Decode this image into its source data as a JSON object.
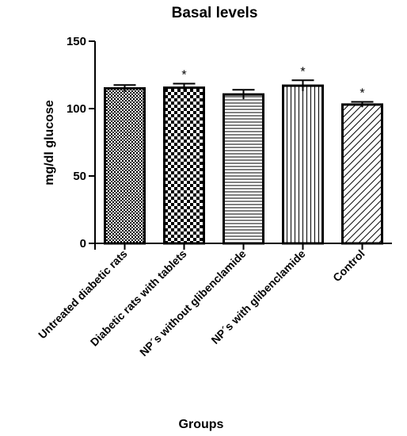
{
  "chart_data": {
    "type": "bar",
    "title": "Basal levels",
    "xlabel": "Groups",
    "ylabel": "mg/dl glucose",
    "ylim": [
      0,
      150
    ],
    "yticks": [
      0,
      50,
      100,
      150
    ],
    "grid": false,
    "categories": [
      "Untreated diabetic rats",
      "Diabetic rats with tablets",
      "NP´s without glibenclamide",
      "NP´s with glibenclamide",
      "Control"
    ],
    "values": [
      115,
      115.5,
      110.5,
      117,
      103
    ],
    "errors": [
      2.5,
      3,
      3.5,
      4,
      2
    ],
    "significance": [
      "",
      "*",
      "",
      "*",
      "*"
    ],
    "patterns": [
      "fine-checker",
      "coarse-checker",
      "horizontal-lines",
      "vertical-lines",
      "diagonal-lines"
    ]
  }
}
